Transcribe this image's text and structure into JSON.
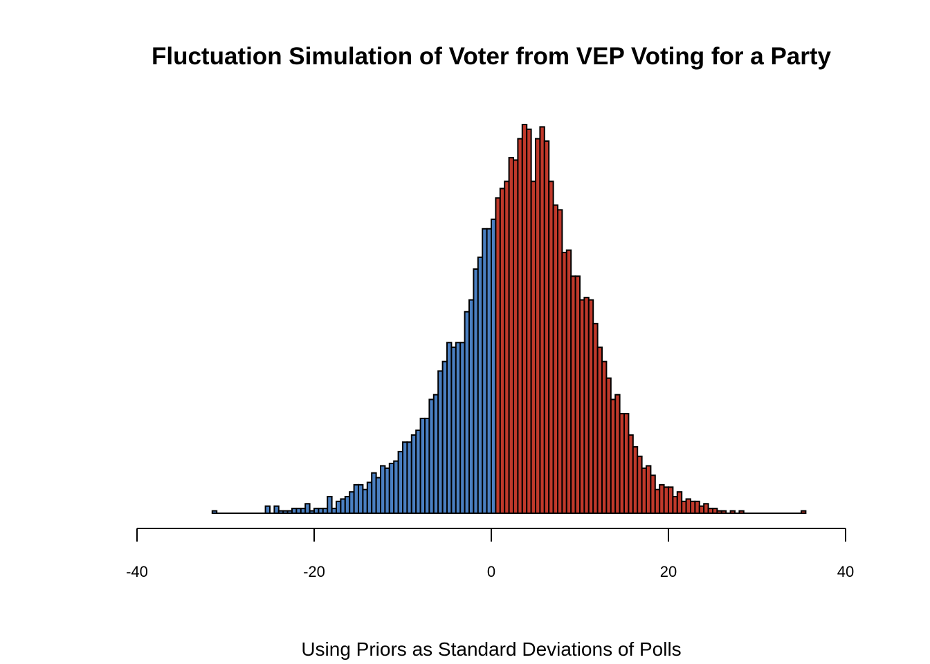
{
  "chart_data": {
    "type": "bar",
    "title": "Fluctuation Simulation of Voter from VEP Voting for a Party",
    "xlabel": "Using Priors as Standard Deviations of Polls",
    "ylabel": "",
    "xlim": [
      -40,
      40
    ],
    "xticks": [
      -40,
      -20,
      0,
      20,
      40
    ],
    "y_axis_shown": false,
    "grid": false,
    "bin_width": 0.5,
    "bins_start": -31.5,
    "split_at": 0.5,
    "colors": {
      "below_split": "#4a7fc1",
      "above_split": "#c0392b",
      "outline": "#000000"
    },
    "counts": [
      1,
      0,
      0,
      0,
      0,
      0,
      0,
      0,
      0,
      0,
      0,
      0,
      3,
      0,
      3,
      1,
      1,
      1,
      2,
      2,
      2,
      4,
      1,
      2,
      2,
      2,
      7,
      2,
      5,
      6,
      7,
      9,
      12,
      12,
      10,
      13,
      17,
      15,
      20,
      19,
      21,
      22,
      26,
      30,
      30,
      33,
      35,
      40,
      40,
      48,
      50,
      60,
      64,
      72,
      70,
      72,
      72,
      85,
      90,
      103,
      108,
      120,
      120,
      124,
      133,
      137,
      140,
      150,
      149,
      158,
      164,
      162,
      140,
      158,
      163,
      157,
      140,
      130,
      128,
      110,
      111,
      100,
      100,
      90,
      91,
      90,
      80,
      70,
      64,
      57,
      48,
      50,
      42,
      42,
      33,
      28,
      24,
      19,
      20,
      16,
      10,
      12,
      11,
      11,
      7,
      9,
      5,
      6,
      5,
      5,
      3,
      4,
      2,
      2,
      1,
      1,
      0,
      1,
      0,
      1,
      0,
      0,
      0,
      0,
      0,
      0,
      0,
      0,
      0,
      0,
      0,
      0,
      0,
      1
    ]
  }
}
